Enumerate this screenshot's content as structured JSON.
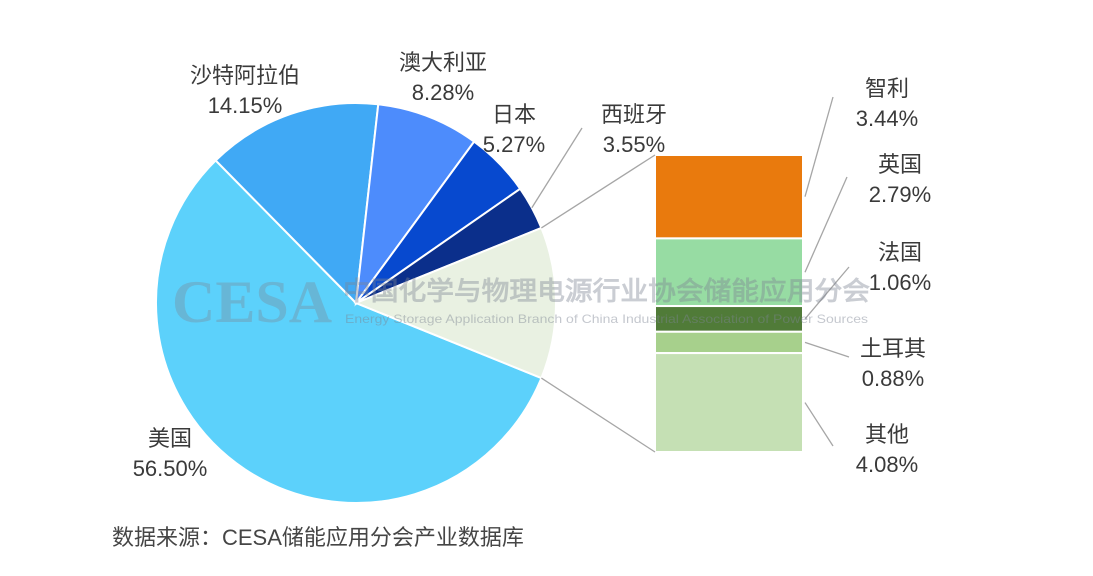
{
  "chart_data": {
    "type": "pie",
    "subtype": "pie-of-bar",
    "slices": [
      {
        "label": "美国",
        "value": 56.5,
        "value_label": "56.50%",
        "color": "#5CD1FB"
      },
      {
        "label": "沙特阿拉伯",
        "value": 14.15,
        "value_label": "14.15%",
        "color": "#40A9F5"
      },
      {
        "label": "澳大利亚",
        "value": 8.28,
        "value_label": "8.28%",
        "color": "#4D8CFC"
      },
      {
        "label": "日本",
        "value": 5.27,
        "value_label": "5.27%",
        "color": "#0749CF"
      },
      {
        "label": "西班牙",
        "value": 3.55,
        "value_label": "3.55%",
        "color": "#0B2F8B"
      }
    ],
    "combined_slice_color": "#E9F1E2",
    "bar_breakdown": [
      {
        "label": "智利",
        "value": 3.44,
        "value_label": "3.44%",
        "color": "#E97A0D"
      },
      {
        "label": "英国",
        "value": 2.79,
        "value_label": "2.79%",
        "color": "#97DCA3"
      },
      {
        "label": "法国",
        "value": 1.06,
        "value_label": "1.06%",
        "color": "#507B38"
      },
      {
        "label": "土耳其",
        "value": 0.88,
        "value_label": "0.88%",
        "color": "#A7D08C"
      },
      {
        "label": "其他",
        "value": 4.08,
        "value_label": "4.08%",
        "color": "#C5E0B4"
      }
    ],
    "source": "数据来源：CESA储能应用分会产业数据库"
  },
  "watermark": {
    "logo": "CESA",
    "org_cn": "中国化学与物理电源行业协会储能应用分会",
    "org_en": "Energy Storage Application Branch of China Industrial Association of Power Sources"
  }
}
